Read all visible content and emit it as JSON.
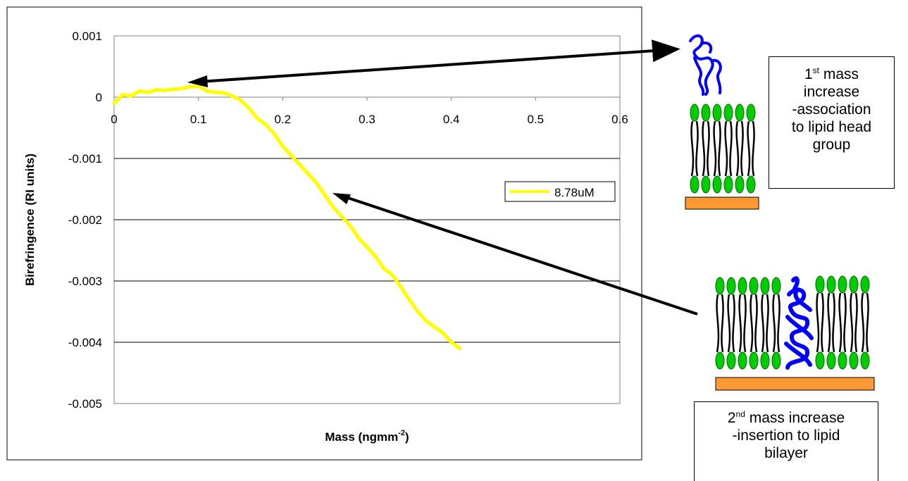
{
  "chart_data": {
    "type": "line",
    "xlabel": "Mass  (ngmm",
    "xlabel_sup": "-2",
    "xlabel_close": ")",
    "ylabel": "Birefringence (RI units)",
    "xlim": [
      0,
      0.6
    ],
    "ylim": [
      -0.005,
      0.001
    ],
    "x_ticks": [
      0,
      0.1,
      0.2,
      0.3,
      0.4,
      0.5,
      0.6
    ],
    "x_tick_labels": [
      "0",
      "0.1",
      "0.2",
      "0.3",
      "0.4",
      "0.5",
      "0.6"
    ],
    "y_ticks": [
      0.001,
      0,
      -0.001,
      -0.002,
      -0.003,
      -0.004,
      -0.005
    ],
    "y_tick_labels": [
      "0.001",
      "0",
      "-0.001",
      "-0.002",
      "-0.003",
      "-0.004",
      "-0.005"
    ],
    "grid": "horizontal",
    "legend_position": "right",
    "series": [
      {
        "name": "8.78uM",
        "color": "#ffff00",
        "x": [
          0,
          0.01,
          0.02,
          0.03,
          0.04,
          0.05,
          0.06,
          0.07,
          0.08,
          0.09,
          0.1,
          0.11,
          0.12,
          0.13,
          0.14,
          0.15,
          0.16,
          0.17,
          0.18,
          0.19,
          0.2,
          0.21,
          0.22,
          0.23,
          0.24,
          0.25,
          0.26,
          0.27,
          0.28,
          0.29,
          0.3,
          0.31,
          0.32,
          0.33,
          0.34,
          0.35,
          0.36,
          0.37,
          0.38,
          0.39,
          0.4,
          0.41
        ],
        "y": [
          -0.0001,
          4e-05,
          2e-05,
          0.0001,
          8e-05,
          0.00012,
          0.00011,
          0.00013,
          0.00014,
          0.00017,
          0.00018,
          0.0001,
          8e-05,
          7e-05,
          2e-05,
          -5e-05,
          -0.00018,
          -0.00035,
          -0.00045,
          -0.0006,
          -0.0008,
          -0.00095,
          -0.0011,
          -0.00125,
          -0.0014,
          -0.0016,
          -0.0018,
          -0.00195,
          -0.0021,
          -0.0023,
          -0.00245,
          -0.0026,
          -0.0028,
          -0.0029,
          -0.0031,
          -0.0033,
          -0.0035,
          -0.00365,
          -0.00375,
          -0.00385,
          -0.004,
          -0.0041
        ]
      }
    ]
  },
  "annotations": {
    "box1": {
      "sup": "st",
      "line1": " mass",
      "line2": "increase",
      "line3": "-association",
      "line4": "to lipid head",
      "line5": "group",
      "lead": "1"
    },
    "box2": {
      "lead": "2",
      "sup": "nd",
      "line1": " mass increase",
      "line2": "-insertion to lipid",
      "line3": "bilayer"
    }
  },
  "colors": {
    "data": "#ffff00",
    "lipid_head": "#00cc00",
    "protein": "#0000ff",
    "substrate": "#ff9933",
    "arrow": "#000000"
  }
}
